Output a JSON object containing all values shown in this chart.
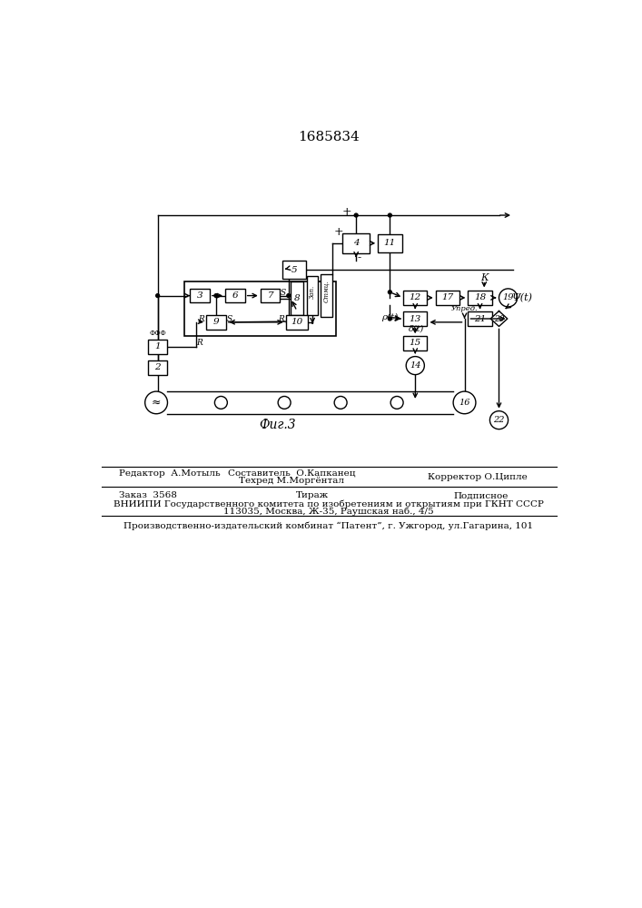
{
  "title": "1685834",
  "bg_color": "#ffffff",
  "fig_label": "Фиг.3",
  "bottom": {
    "editor": "Редактор  А.Мотыль",
    "composer": "Составитель  О.Капканец",
    "techred": "Техред М.Моргёнтал",
    "corrector": "Корректор О.Ципле",
    "order": "Заказ  3568",
    "tirazh": "Тираж",
    "podpisnoe": "Подписное",
    "vniip1": "ВНИИПИ Государственного комитета по изобретениям и открытиям при ГКНТ СССР",
    "vniip2": "113035, Москва, Ж-35, Раушская наб., 4/5",
    "production": "Производственно-издательский комбинат “Патент”, г. Ужгород, ул.Гагарина, 101"
  }
}
